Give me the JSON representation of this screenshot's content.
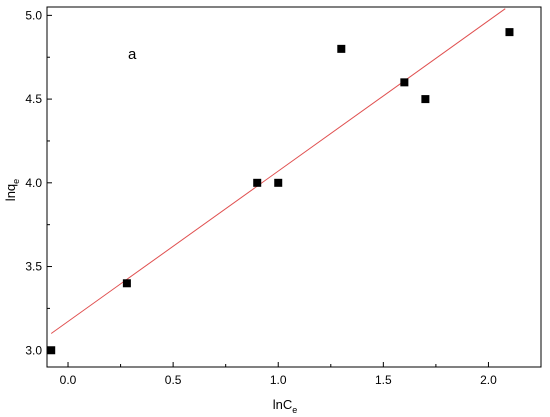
{
  "chart_data": {
    "type": "scatter",
    "xlabel": {
      "main": "lnC",
      "sub": "e"
    },
    "ylabel": {
      "main": "lnq",
      "sub": "e"
    },
    "annotation": "a",
    "xlim": [
      -0.1,
      2.25
    ],
    "ylim": [
      2.9,
      5.05
    ],
    "xticks": [
      0.0,
      0.5,
      1.0,
      1.5,
      2.0
    ],
    "xtick_labels": [
      "0.0",
      "0.5",
      "1.0",
      "1.5",
      "2.0"
    ],
    "yticks": [
      3.0,
      3.5,
      4.0,
      4.5,
      5.0
    ],
    "ytick_labels": [
      "3.0",
      "3.5",
      "4.0",
      "4.5",
      "5.0"
    ],
    "points": [
      {
        "x": -0.08,
        "y": 3.0
      },
      {
        "x": 0.28,
        "y": 3.4
      },
      {
        "x": 0.9,
        "y": 4.0
      },
      {
        "x": 1.0,
        "y": 4.0
      },
      {
        "x": 1.3,
        "y": 4.8
      },
      {
        "x": 1.6,
        "y": 4.6
      },
      {
        "x": 1.7,
        "y": 4.5
      },
      {
        "x": 2.1,
        "y": 4.9
      }
    ],
    "fit_line": {
      "x": [
        -0.08,
        2.08
      ],
      "y": [
        3.1,
        5.04
      ]
    },
    "colors": {
      "points": "#000000",
      "fit_line": "#e05050",
      "axes": "#000000"
    },
    "grid": false,
    "legend": "none"
  }
}
